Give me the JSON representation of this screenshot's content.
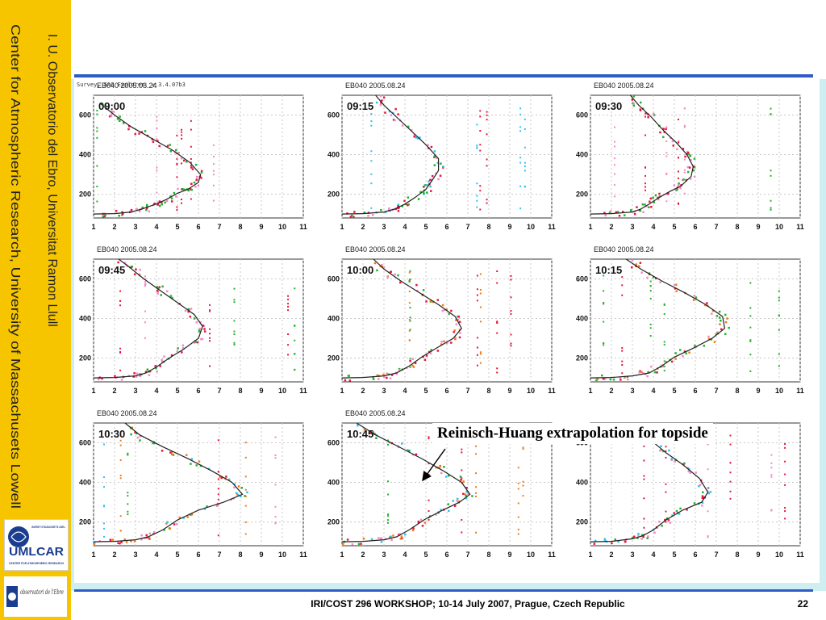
{
  "slide": {
    "sidebar_line1": "I. U. Observatorio del Ebro, Universitat Ramon Llull",
    "sidebar_line2": "Center for Atmospheric Research, University of Massachusets Lowell",
    "logo_umlcar_top": "UNIVERSITY OF MASSACHUSETTS LOWELL",
    "logo_umlcar_main": "UMLCAR",
    "logo_umlcar_sub": "CENTER FOR ATMOSPHERIC RESEARCH",
    "logo_ebro_script": "observatori de l'Ebre",
    "footer": "IRI/COST 296 WORKSHOP; 10-14 July 2007, Prague, Czech Republic",
    "page_number": "22",
    "callout": "Reinisch-Huang extrapolation for topside",
    "app_title": "Survey, SAO Explorer, v 3.4.07b3"
  },
  "colors": {
    "sidebar": "#f6c500",
    "rule": "#2e5cc7",
    "content_bg": "#cfeef2",
    "profile_line": "#222222",
    "trace_red": "#e8163c",
    "trace_pink": "#f08ac8",
    "trace_green": "#22b22a",
    "trace_orange": "#f07a16",
    "trace_cyan": "#2cc4f0"
  },
  "chart_data": [
    {
      "type": "scatter",
      "station": "EB040 2005.08.24",
      "time": "09:00",
      "x_ticks": [
        "1",
        "2",
        "3",
        "4",
        "5",
        "6",
        "7",
        "8",
        "9",
        "10",
        "11"
      ],
      "y_ticks": [
        "200",
        "400",
        "600"
      ],
      "xlim": [
        1,
        11
      ],
      "ylim": [
        80,
        700
      ],
      "profile": [
        [
          1,
          100
        ],
        [
          2,
          102
        ],
        [
          2.8,
          110
        ],
        [
          3.3,
          125
        ],
        [
          3.7,
          140
        ],
        [
          4.1,
          155
        ],
        [
          4.5,
          175
        ],
        [
          5.0,
          205
        ],
        [
          5.5,
          225
        ],
        [
          6.0,
          260
        ],
        [
          6.1,
          300
        ],
        [
          5.6,
          360
        ],
        [
          4.8,
          420
        ],
        [
          3.8,
          480
        ],
        [
          2.8,
          540
        ],
        [
          2.0,
          600
        ],
        [
          1.3,
          660
        ]
      ],
      "trace_colors": [
        "red",
        "pink",
        "green"
      ]
    },
    {
      "type": "scatter",
      "station": "EB040 2005.08.24",
      "time": "09:15",
      "x_ticks": [
        "1",
        "2",
        "3",
        "4",
        "5",
        "6",
        "7",
        "8",
        "9",
        "10",
        "11"
      ],
      "y_ticks": [
        "200",
        "400",
        "600"
      ],
      "xlim": [
        1,
        11
      ],
      "ylim": [
        80,
        700
      ],
      "profile": [
        [
          1,
          100
        ],
        [
          2,
          102
        ],
        [
          3,
          110
        ],
        [
          3.5,
          125
        ],
        [
          4,
          150
        ],
        [
          4.5,
          185
        ],
        [
          5,
          225
        ],
        [
          5.3,
          270
        ],
        [
          5.6,
          320
        ],
        [
          5.6,
          380
        ],
        [
          5.0,
          450
        ],
        [
          4.3,
          520
        ],
        [
          3.6,
          590
        ],
        [
          3.0,
          650
        ],
        [
          2.6,
          700
        ]
      ],
      "trace_colors": [
        "red",
        "pink",
        "green",
        "cyan"
      ]
    },
    {
      "type": "scatter",
      "station": "EB040 2005.08.24",
      "time": "09:30",
      "x_ticks": [
        "1",
        "2",
        "3",
        "4",
        "5",
        "6",
        "7",
        "8",
        "9",
        "10",
        "11"
      ],
      "y_ticks": [
        "200",
        "400",
        "600"
      ],
      "xlim": [
        1,
        11
      ],
      "ylim": [
        80,
        700
      ],
      "profile": [
        [
          1,
          100
        ],
        [
          2,
          102
        ],
        [
          3,
          110
        ],
        [
          3.4,
          125
        ],
        [
          3.8,
          150
        ],
        [
          4.3,
          185
        ],
        [
          4.8,
          215
        ],
        [
          5.3,
          240
        ],
        [
          5.8,
          290
        ],
        [
          5.9,
          340
        ],
        [
          5.6,
          400
        ],
        [
          5.1,
          460
        ],
        [
          4.5,
          520
        ],
        [
          3.9,
          590
        ],
        [
          3.3,
          650
        ],
        [
          2.9,
          700
        ]
      ],
      "trace_colors": [
        "red",
        "pink",
        "green"
      ]
    },
    {
      "type": "scatter",
      "station": "EB040 2005.08.24",
      "time": "09:45",
      "x_ticks": [
        "1",
        "2",
        "3",
        "4",
        "5",
        "6",
        "7",
        "8",
        "9",
        "10",
        "11"
      ],
      "y_ticks": [
        "200",
        "400",
        "600"
      ],
      "xlim": [
        1,
        11
      ],
      "ylim": [
        80,
        700
      ],
      "profile": [
        [
          1,
          100
        ],
        [
          2,
          102
        ],
        [
          3,
          110
        ],
        [
          3.5,
          125
        ],
        [
          4,
          155
        ],
        [
          4.6,
          200
        ],
        [
          5.3,
          245
        ],
        [
          6.0,
          300
        ],
        [
          6.2,
          360
        ],
        [
          5.8,
          420
        ],
        [
          5.0,
          480
        ],
        [
          4.2,
          540
        ],
        [
          3.4,
          600
        ],
        [
          2.7,
          660
        ],
        [
          2.2,
          700
        ]
      ],
      "trace_colors": [
        "red",
        "pink",
        "green"
      ]
    },
    {
      "type": "scatter",
      "station": "EB040 2005.08.24",
      "time": "10:00",
      "x_ticks": [
        "1",
        "2",
        "3",
        "4",
        "5",
        "6",
        "7",
        "8",
        "9",
        "10",
        "11"
      ],
      "y_ticks": [
        "200",
        "400",
        "600"
      ],
      "xlim": [
        1,
        11
      ],
      "ylim": [
        80,
        700
      ],
      "profile": [
        [
          1,
          100
        ],
        [
          2,
          102
        ],
        [
          3,
          110
        ],
        [
          3.6,
          125
        ],
        [
          4.2,
          160
        ],
        [
          4.8,
          205
        ],
        [
          5.5,
          250
        ],
        [
          6.3,
          300
        ],
        [
          6.7,
          350
        ],
        [
          6.4,
          410
        ],
        [
          5.6,
          470
        ],
        [
          4.7,
          530
        ],
        [
          3.8,
          590
        ],
        [
          3.0,
          650
        ],
        [
          2.5,
          700
        ]
      ],
      "trace_colors": [
        "red",
        "pink",
        "green",
        "orange"
      ]
    },
    {
      "type": "scatter",
      "station": "EB040 2005.08.24",
      "time": "10:15",
      "x_ticks": [
        "1",
        "2",
        "3",
        "4",
        "5",
        "6",
        "7",
        "8",
        "9",
        "10",
        "11"
      ],
      "y_ticks": [
        "200",
        "400",
        "600"
      ],
      "xlim": [
        1,
        11
      ],
      "ylim": [
        80,
        700
      ],
      "profile": [
        [
          1,
          100
        ],
        [
          2,
          102
        ],
        [
          3,
          110
        ],
        [
          3.8,
          125
        ],
        [
          4.4,
          160
        ],
        [
          5.0,
          205
        ],
        [
          5.9,
          250
        ],
        [
          6.8,
          300
        ],
        [
          7.4,
          350
        ],
        [
          7.3,
          410
        ],
        [
          6.5,
          470
        ],
        [
          5.5,
          530
        ],
        [
          4.4,
          590
        ],
        [
          3.4,
          650
        ],
        [
          2.7,
          700
        ]
      ],
      "trace_colors": [
        "red",
        "pink",
        "green",
        "orange"
      ]
    },
    {
      "type": "scatter",
      "station": "EB040 2005.08.24",
      "time": "10:30",
      "x_ticks": [
        "1",
        "2",
        "3",
        "4",
        "5",
        "6",
        "7",
        "8",
        "9",
        "10",
        "11"
      ],
      "y_ticks": [
        "200",
        "400",
        "600"
      ],
      "xlim": [
        1,
        11
      ],
      "ylim": [
        80,
        700
      ],
      "profile": [
        [
          1,
          100
        ],
        [
          2,
          102
        ],
        [
          3,
          110
        ],
        [
          3.6,
          125
        ],
        [
          4.3,
          160
        ],
        [
          5.0,
          210
        ],
        [
          6.0,
          260
        ],
        [
          7.2,
          300
        ],
        [
          8.1,
          340
        ],
        [
          7.6,
          400
        ],
        [
          6.6,
          460
        ],
        [
          5.5,
          520
        ],
        [
          4.3,
          580
        ],
        [
          3.2,
          640
        ],
        [
          2.5,
          700
        ]
      ],
      "trace_colors": [
        "red",
        "pink",
        "green",
        "orange",
        "cyan"
      ]
    },
    {
      "type": "scatter",
      "station": "EB040 2005.08.24",
      "time": "10:45",
      "x_ticks": [
        "1",
        "2",
        "3",
        "4",
        "5",
        "6",
        "7",
        "8",
        "9",
        "10",
        "11"
      ],
      "y_ticks": [
        "200",
        "400",
        "600"
      ],
      "xlim": [
        1,
        11
      ],
      "ylim": [
        80,
        700
      ],
      "profile": [
        [
          1,
          100
        ],
        [
          2,
          102
        ],
        [
          3,
          110
        ],
        [
          3.6,
          125
        ],
        [
          4.2,
          160
        ],
        [
          4.9,
          210
        ],
        [
          5.8,
          260
        ],
        [
          6.6,
          300
        ],
        [
          7.1,
          340
        ],
        [
          6.7,
          400
        ],
        [
          5.8,
          460
        ],
        [
          4.8,
          520
        ],
        [
          3.7,
          580
        ],
        [
          2.6,
          640
        ],
        [
          1.7,
          700
        ]
      ],
      "trace_colors": [
        "red",
        "pink",
        "green",
        "orange",
        "cyan"
      ]
    },
    {
      "type": "scatter",
      "station": "",
      "time": "",
      "x_ticks": [
        "1",
        "2",
        "3",
        "4",
        "5",
        "6",
        "7",
        "8",
        "9",
        "10",
        "11"
      ],
      "y_ticks": [
        "200",
        "400",
        "600"
      ],
      "xlim": [
        1,
        11
      ],
      "ylim": [
        80,
        700
      ],
      "profile": [
        [
          1,
          100
        ],
        [
          2,
          102
        ],
        [
          3,
          115
        ],
        [
          3.5,
          130
        ],
        [
          4.0,
          160
        ],
        [
          4.6,
          210
        ],
        [
          5.4,
          260
        ],
        [
          6.3,
          300
        ],
        [
          6.6,
          350
        ],
        [
          6.2,
          420
        ],
        [
          5.4,
          490
        ],
        [
          4.6,
          550
        ],
        [
          3.8,
          620
        ],
        [
          3.2,
          680
        ]
      ],
      "trace_colors": [
        "red",
        "pink",
        "green",
        "cyan"
      ]
    }
  ]
}
